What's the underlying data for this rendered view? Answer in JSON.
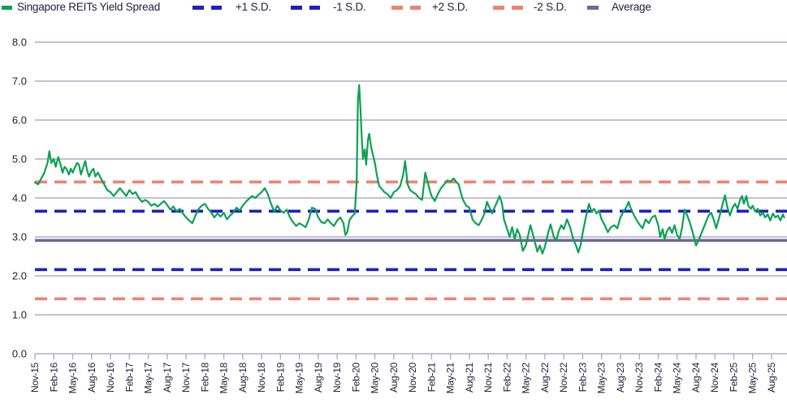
{
  "chart_data": {
    "type": "line",
    "title": "Singapore REITs Yield Spread",
    "legend": [
      {
        "label": "Singapore REITs Yield Spread",
        "color": "#0ca152",
        "style": "solid"
      },
      {
        "label": "+1 S.D.",
        "color": "#1e1ec8",
        "style": "dashed"
      },
      {
        "label": "-1 S.D.",
        "color": "#1e1ec8",
        "style": "dashed"
      },
      {
        "label": "+2 S.D.",
        "color": "#ef8372",
        "style": "dashed"
      },
      {
        "label": "-2 S.D.",
        "color": "#ef8372",
        "style": "dashed"
      },
      {
        "label": "Average",
        "color": "#70679c",
        "style": "solid"
      }
    ],
    "y_axis": {
      "ticks": [
        "8.0",
        "7.0",
        "6.0",
        "5.0",
        "4.0",
        "3.0",
        "2.0",
        "1.0",
        "0.0"
      ],
      "min": 0,
      "max": 8,
      "grid": true
    },
    "x_axis": {
      "tick_labels": [
        "Nov-15",
        "Feb-16",
        "May-16",
        "Aug-16",
        "Nov-16",
        "Feb-17",
        "May-17",
        "Aug-17",
        "Nov-17",
        "Feb-18",
        "May-18",
        "Aug-18",
        "Nov-18",
        "Feb-19",
        "May-19",
        "Aug-19",
        "Nov-19",
        "Feb-20",
        "May-20",
        "Aug-20",
        "Nov-20",
        "Feb-21",
        "May-21",
        "Aug-21",
        "Nov-21",
        "Feb-22",
        "May-22",
        "Aug-22",
        "Nov-22",
        "Feb-23",
        "May-23",
        "Aug-23",
        "Nov-23",
        "Feb-24",
        "May-24",
        "Aug-24",
        "Nov-24",
        "Feb-25",
        "May-25",
        "Aug-25"
      ],
      "months_per_tick": 3
    },
    "reference_lines": [
      {
        "name": "+2 S.D.",
        "value": 4.41,
        "color": "#ef8372",
        "style": "dashed"
      },
      {
        "name": "+1 S.D.",
        "value": 3.66,
        "color": "#1e1ec8",
        "style": "dashed"
      },
      {
        "name": "Average",
        "value": 2.91,
        "color": "#70679c",
        "style": "solid"
      },
      {
        "name": "-1 S.D.",
        "value": 2.16,
        "color": "#1e1ec8",
        "style": "dashed"
      },
      {
        "name": "-2 S.D.",
        "value": 1.41,
        "color": "#ef8372",
        "style": "dashed"
      }
    ],
    "series": [
      {
        "name": "Singapore REITs Yield Spread",
        "color": "#0ca152",
        "x_unit": "months_since_Nov-15",
        "points": [
          [
            0,
            4.4
          ],
          [
            0.5,
            4.35
          ],
          [
            1,
            4.5
          ],
          [
            1.5,
            4.65
          ],
          [
            2,
            4.9
          ],
          [
            2.3,
            5.2
          ],
          [
            2.6,
            4.9
          ],
          [
            3,
            5.0
          ],
          [
            3.3,
            4.8
          ],
          [
            3.7,
            5.05
          ],
          [
            4,
            4.9
          ],
          [
            4.4,
            4.65
          ],
          [
            4.7,
            4.8
          ],
          [
            5,
            4.75
          ],
          [
            5.4,
            4.6
          ],
          [
            5.7,
            4.75
          ],
          [
            6,
            4.65
          ],
          [
            6.4,
            4.8
          ],
          [
            6.7,
            4.9
          ],
          [
            7,
            4.85
          ],
          [
            7.3,
            4.6
          ],
          [
            7.6,
            4.75
          ],
          [
            8,
            4.95
          ],
          [
            8.3,
            4.7
          ],
          [
            8.6,
            4.55
          ],
          [
            9,
            4.7
          ],
          [
            9.3,
            4.75
          ],
          [
            9.6,
            4.55
          ],
          [
            10,
            4.65
          ],
          [
            10.5,
            4.5
          ],
          [
            11,
            4.35
          ],
          [
            11.5,
            4.2
          ],
          [
            12,
            4.15
          ],
          [
            12.5,
            4.05
          ],
          [
            13,
            4.15
          ],
          [
            13.5,
            4.25
          ],
          [
            14,
            4.15
          ],
          [
            14.5,
            4.05
          ],
          [
            15,
            4.2
          ],
          [
            15.5,
            4.1
          ],
          [
            16,
            4.15
          ],
          [
            16.5,
            4.0
          ],
          [
            17,
            3.9
          ],
          [
            17.5,
            3.95
          ],
          [
            18,
            3.9
          ],
          [
            18.5,
            3.8
          ],
          [
            19,
            3.85
          ],
          [
            19.5,
            3.78
          ],
          [
            20,
            3.85
          ],
          [
            20.5,
            3.92
          ],
          [
            21,
            3.82
          ],
          [
            21.5,
            3.7
          ],
          [
            22,
            3.78
          ],
          [
            22.5,
            3.65
          ],
          [
            23,
            3.72
          ],
          [
            23.5,
            3.6
          ],
          [
            24,
            3.5
          ],
          [
            24.5,
            3.42
          ],
          [
            25,
            3.35
          ],
          [
            25.5,
            3.55
          ],
          [
            26,
            3.72
          ],
          [
            26.5,
            3.8
          ],
          [
            27,
            3.85
          ],
          [
            27.5,
            3.72
          ],
          [
            28,
            3.62
          ],
          [
            28.5,
            3.5
          ],
          [
            29,
            3.6
          ],
          [
            29.5,
            3.52
          ],
          [
            30,
            3.62
          ],
          [
            30.5,
            3.45
          ],
          [
            31,
            3.55
          ],
          [
            31.5,
            3.62
          ],
          [
            32,
            3.75
          ],
          [
            32.5,
            3.68
          ],
          [
            33,
            3.8
          ],
          [
            33.5,
            3.9
          ],
          [
            34,
            3.98
          ],
          [
            34.5,
            4.05
          ],
          [
            35,
            4.0
          ],
          [
            35.5,
            4.08
          ],
          [
            36,
            4.15
          ],
          [
            36.5,
            4.25
          ],
          [
            37,
            4.1
          ],
          [
            37.5,
            3.85
          ],
          [
            38,
            3.65
          ],
          [
            38.5,
            3.8
          ],
          [
            39,
            3.68
          ],
          [
            39.5,
            3.62
          ],
          [
            40,
            3.7
          ],
          [
            40.5,
            3.5
          ],
          [
            41,
            3.38
          ],
          [
            41.5,
            3.28
          ],
          [
            42,
            3.35
          ],
          [
            42.5,
            3.3
          ],
          [
            43,
            3.25
          ],
          [
            43.5,
            3.45
          ],
          [
            44,
            3.75
          ],
          [
            44.5,
            3.72
          ],
          [
            45,
            3.5
          ],
          [
            45.5,
            3.38
          ],
          [
            46,
            3.35
          ],
          [
            46.5,
            3.45
          ],
          [
            47,
            3.35
          ],
          [
            47.5,
            3.28
          ],
          [
            48,
            3.42
          ],
          [
            48.5,
            3.5
          ],
          [
            49,
            3.35
          ],
          [
            49.3,
            3.05
          ],
          [
            49.6,
            3.12
          ],
          [
            50,
            3.45
          ],
          [
            50.5,
            3.55
          ],
          [
            50.8,
            3.6
          ],
          [
            51.1,
            4.4
          ],
          [
            51.3,
            6.5
          ],
          [
            51.5,
            6.9
          ],
          [
            51.7,
            6.3
          ],
          [
            51.9,
            5.6
          ],
          [
            52.1,
            5.0
          ],
          [
            52.4,
            5.25
          ],
          [
            52.6,
            4.85
          ],
          [
            52.9,
            5.5
          ],
          [
            53.1,
            5.65
          ],
          [
            53.4,
            5.3
          ],
          [
            53.7,
            5.1
          ],
          [
            54,
            4.9
          ],
          [
            54.3,
            4.6
          ],
          [
            54.7,
            4.3
          ],
          [
            55,
            4.25
          ],
          [
            55.5,
            4.15
          ],
          [
            56,
            4.1
          ],
          [
            56.5,
            4.0
          ],
          [
            57,
            4.15
          ],
          [
            57.5,
            4.2
          ],
          [
            58,
            4.3
          ],
          [
            58.5,
            4.6
          ],
          [
            58.8,
            4.95
          ],
          [
            59.2,
            4.35
          ],
          [
            59.6,
            4.2
          ],
          [
            60,
            4.15
          ],
          [
            60.5,
            4.1
          ],
          [
            61,
            4.0
          ],
          [
            61.5,
            3.95
          ],
          [
            62,
            4.65
          ],
          [
            62.4,
            4.4
          ],
          [
            62.8,
            4.15
          ],
          [
            63,
            4.05
          ],
          [
            63.5,
            3.92
          ],
          [
            64,
            4.1
          ],
          [
            64.5,
            4.25
          ],
          [
            65,
            4.35
          ],
          [
            65.5,
            4.45
          ],
          [
            66,
            4.42
          ],
          [
            66.5,
            4.5
          ],
          [
            67,
            4.4
          ],
          [
            67.3,
            4.35
          ],
          [
            67.7,
            4.1
          ],
          [
            68,
            3.95
          ],
          [
            68.5,
            3.8
          ],
          [
            69,
            3.75
          ],
          [
            69.5,
            3.45
          ],
          [
            70,
            3.35
          ],
          [
            70.5,
            3.3
          ],
          [
            71,
            3.45
          ],
          [
            71.4,
            3.6
          ],
          [
            71.8,
            3.9
          ],
          [
            72.2,
            3.75
          ],
          [
            72.6,
            3.6
          ],
          [
            73,
            3.75
          ],
          [
            73.4,
            3.9
          ],
          [
            73.8,
            4.05
          ],
          [
            74.2,
            3.85
          ],
          [
            74.5,
            3.45
          ],
          [
            74.8,
            3.3
          ],
          [
            75,
            3.2
          ],
          [
            75.4,
            3.0
          ],
          [
            75.8,
            3.25
          ],
          [
            76.2,
            2.94
          ],
          [
            76.6,
            3.2
          ],
          [
            77,
            3.05
          ],
          [
            77.5,
            2.64
          ],
          [
            78,
            2.8
          ],
          [
            78.7,
            3.3
          ],
          [
            79.2,
            3.0
          ],
          [
            79.8,
            2.62
          ],
          [
            80.2,
            2.78
          ],
          [
            80.6,
            2.57
          ],
          [
            81,
            2.75
          ],
          [
            81.5,
            3.1
          ],
          [
            81.9,
            3.32
          ],
          [
            82.4,
            3.0
          ],
          [
            82.8,
            2.9
          ],
          [
            83.2,
            3.15
          ],
          [
            83.6,
            3.3
          ],
          [
            84,
            3.2
          ],
          [
            84.5,
            3.45
          ],
          [
            85,
            3.25
          ],
          [
            85.5,
            2.95
          ],
          [
            86,
            2.75
          ],
          [
            86.3,
            2.6
          ],
          [
            86.7,
            2.8
          ],
          [
            87,
            3.1
          ],
          [
            87.5,
            3.5
          ],
          [
            88,
            3.85
          ],
          [
            88.4,
            3.65
          ],
          [
            88.8,
            3.72
          ],
          [
            89.2,
            3.6
          ],
          [
            89.6,
            3.68
          ],
          [
            90,
            3.45
          ],
          [
            90.5,
            3.3
          ],
          [
            91,
            3.12
          ],
          [
            91.5,
            3.25
          ],
          [
            92,
            3.3
          ],
          [
            92.5,
            3.22
          ],
          [
            93,
            3.5
          ],
          [
            93.5,
            3.65
          ],
          [
            94,
            3.78
          ],
          [
            94.3,
            3.9
          ],
          [
            94.6,
            3.75
          ],
          [
            95,
            3.6
          ],
          [
            95.5,
            3.45
          ],
          [
            96,
            3.32
          ],
          [
            96.5,
            3.22
          ],
          [
            97,
            3.45
          ],
          [
            97.5,
            3.35
          ],
          [
            98,
            3.5
          ],
          [
            98.5,
            3.55
          ],
          [
            99,
            3.3
          ],
          [
            99.3,
            3.0
          ],
          [
            99.7,
            3.2
          ],
          [
            100,
            2.95
          ],
          [
            100.4,
            3.15
          ],
          [
            100.8,
            3.25
          ],
          [
            101.2,
            3.1
          ],
          [
            101.6,
            3.3
          ],
          [
            102,
            3.05
          ],
          [
            102.4,
            2.95
          ],
          [
            102.8,
            3.25
          ],
          [
            103.2,
            3.7
          ],
          [
            103.6,
            3.55
          ],
          [
            104,
            3.38
          ],
          [
            104.5,
            3.1
          ],
          [
            105,
            2.78
          ],
          [
            105.5,
            2.95
          ],
          [
            106,
            3.15
          ],
          [
            106.5,
            3.35
          ],
          [
            107,
            3.55
          ],
          [
            107.4,
            3.62
          ],
          [
            107.8,
            3.45
          ],
          [
            108.2,
            3.22
          ],
          [
            108.6,
            3.45
          ],
          [
            109,
            3.7
          ],
          [
            109.6,
            4.07
          ],
          [
            110,
            3.75
          ],
          [
            110.4,
            3.55
          ],
          [
            110.8,
            3.75
          ],
          [
            111.2,
            3.85
          ],
          [
            111.6,
            3.72
          ],
          [
            112,
            3.95
          ],
          [
            112.3,
            4.05
          ],
          [
            112.6,
            3.85
          ],
          [
            113,
            4.05
          ],
          [
            113.3,
            3.8
          ],
          [
            113.7,
            3.72
          ],
          [
            114,
            3.8
          ],
          [
            114.4,
            3.65
          ],
          [
            114.8,
            3.72
          ],
          [
            115.2,
            3.55
          ],
          [
            115.6,
            3.62
          ],
          [
            116,
            3.5
          ],
          [
            116.4,
            3.58
          ],
          [
            116.8,
            3.42
          ],
          [
            117.2,
            3.6
          ],
          [
            117.6,
            3.5
          ],
          [
            118,
            3.55
          ],
          [
            118.4,
            3.42
          ],
          [
            118.8,
            3.58
          ],
          [
            119,
            3.5
          ]
        ]
      }
    ],
    "layout_hints": {
      "legend_position": "top",
      "x_labels_rotated": true,
      "gridline_color": "#b2abc7",
      "axis_text_color": "#21213b",
      "background": "#ffffff"
    }
  }
}
